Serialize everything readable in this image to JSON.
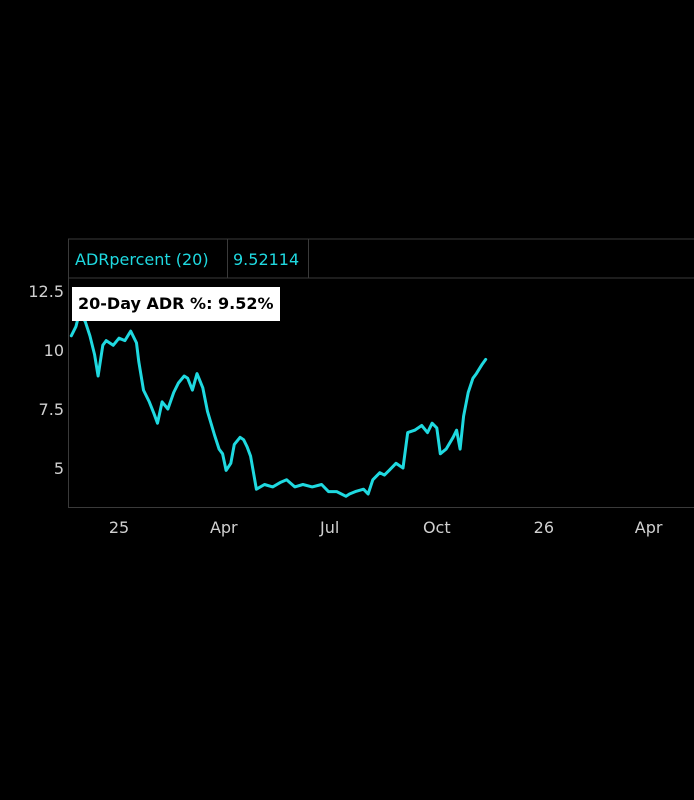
{
  "colors": {
    "background": "#000000",
    "series": "#1fd9e0",
    "text": "#d0d0d0",
    "panel_border": "#3a3a3a",
    "badge_bg": "#ffffff",
    "badge_text": "#000000"
  },
  "legend": {
    "indicator": "ADRpercent (20)",
    "value": "9.52114"
  },
  "badge": {
    "label": "20-Day ADR %: 9.52%"
  },
  "chart_data": {
    "type": "line",
    "title": "",
    "xlabel": "",
    "ylabel": "",
    "ylim": [
      3.4,
      13.2
    ],
    "yticks": [
      5,
      7.5,
      10,
      12.5
    ],
    "ytick_labels": [
      "5",
      "7.5",
      "10",
      "12.5"
    ],
    "x_range": [
      "2024-11-19",
      "2026-05-10"
    ],
    "xtick_labels": [
      {
        "date": "2025-01-01",
        "label": "25"
      },
      {
        "date": "2025-04-01",
        "label": "Apr"
      },
      {
        "date": "2025-07-01",
        "label": "Jul"
      },
      {
        "date": "2025-10-01",
        "label": "Oct"
      },
      {
        "date": "2026-01-01",
        "label": "26"
      },
      {
        "date": "2026-04-01",
        "label": "Apr"
      }
    ],
    "series": [
      {
        "name": "ADRpercent (20)",
        "x": [
          "2024-11-21",
          "2024-11-25",
          "2024-11-28",
          "2024-12-03",
          "2024-12-07",
          "2024-12-11",
          "2024-12-14",
          "2024-12-18",
          "2024-12-21",
          "2024-12-27",
          "2025-01-01",
          "2025-01-06",
          "2025-01-11",
          "2025-01-16",
          "2025-01-18",
          "2025-01-22",
          "2025-01-27",
          "2025-01-31",
          "2025-02-03",
          "2025-02-07",
          "2025-02-12",
          "2025-02-17",
          "2025-02-21",
          "2025-02-26",
          "2025-03-01",
          "2025-03-05",
          "2025-03-09",
          "2025-03-14",
          "2025-03-18",
          "2025-03-24",
          "2025-03-28",
          "2025-03-31",
          "2025-04-03",
          "2025-04-07",
          "2025-04-10",
          "2025-04-15",
          "2025-04-18",
          "2025-04-21",
          "2025-04-24",
          "2025-04-29",
          "2025-05-06",
          "2025-05-13",
          "2025-05-20",
          "2025-05-25",
          "2025-06-01",
          "2025-06-08",
          "2025-06-16",
          "2025-06-24",
          "2025-06-30",
          "2025-07-07",
          "2025-07-15",
          "2025-07-18",
          "2025-07-23",
          "2025-07-30",
          "2025-08-03",
          "2025-08-07",
          "2025-08-13",
          "2025-08-17",
          "2025-08-21",
          "2025-08-27",
          "2025-09-02",
          "2025-09-06",
          "2025-09-12",
          "2025-09-18",
          "2025-09-23",
          "2025-09-27",
          "2025-10-01",
          "2025-10-04",
          "2025-10-09",
          "2025-10-15",
          "2025-10-18",
          "2025-10-21",
          "2025-10-24",
          "2025-10-28",
          "2025-11-01",
          "2025-11-04",
          "2025-11-09",
          "2025-11-12"
        ],
        "values": [
          10.6,
          11.0,
          11.6,
          11.2,
          10.6,
          9.8,
          8.9,
          10.2,
          10.4,
          10.2,
          10.5,
          10.4,
          10.8,
          10.3,
          9.5,
          8.3,
          7.8,
          7.3,
          6.9,
          7.8,
          7.5,
          8.2,
          8.6,
          8.9,
          8.8,
          8.3,
          9.0,
          8.4,
          7.4,
          6.4,
          5.8,
          5.6,
          4.9,
          5.2,
          6.0,
          6.3,
          6.2,
          5.9,
          5.5,
          4.1,
          4.3,
          4.2,
          4.4,
          4.5,
          4.2,
          4.3,
          4.2,
          4.3,
          4.0,
          4.0,
          3.8,
          3.9,
          4.0,
          4.1,
          3.9,
          4.5,
          4.8,
          4.7,
          4.9,
          5.2,
          5.0,
          6.5,
          6.6,
          6.8,
          6.5,
          6.9,
          6.7,
          5.6,
          5.8,
          6.3,
          6.6,
          5.8,
          7.2,
          8.2,
          8.8,
          9.0,
          9.4,
          9.6
        ]
      }
    ]
  }
}
